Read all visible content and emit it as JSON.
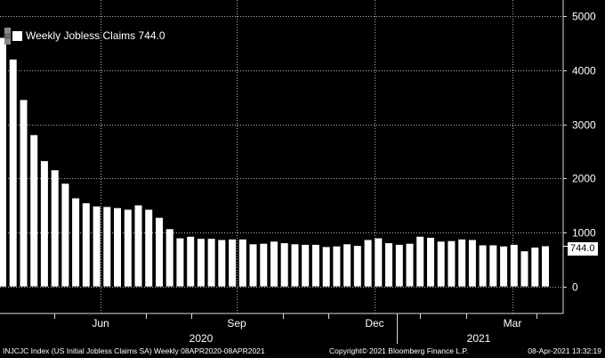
{
  "legend": {
    "grip": "⊡",
    "label": "Weekly Jobless Claims 744.0"
  },
  "last_value_tag": "744.0",
  "footer": {
    "left": "INJCJC Index (US Initial Jobless Claims SA)  Weekly 08APR2020-08APR2021",
    "center": "Copyright© 2021 Bloomberg Finance L.P.",
    "right": "08-Apr-2021 13:32:19"
  },
  "colors": {
    "background": "#000000",
    "bars": "#ffffff",
    "grid": "#b4b4b4",
    "text": "#ffffff"
  },
  "chart_data": {
    "type": "bar",
    "title": "",
    "series": [
      {
        "name": "Weekly Jobless Claims",
        "values": [
          4600,
          4200,
          3450,
          2800,
          2320,
          2150,
          1900,
          1630,
          1540,
          1480,
          1470,
          1450,
          1420,
          1500,
          1420,
          1270,
          1060,
          890,
          920,
          880,
          880,
          860,
          870,
          870,
          780,
          790,
          830,
          800,
          780,
          770,
          770,
          730,
          740,
          780,
          750,
          860,
          890,
          800,
          770,
          790,
          920,
          900,
          830,
          840,
          870,
          860,
          760,
          760,
          740,
          770,
          650,
          720,
          744
        ]
      }
    ],
    "x_tick_labels": [
      "Jun",
      "Sep",
      "Dec",
      "Mar"
    ],
    "year_labels": [
      "2020",
      "2021"
    ],
    "y_ticks": [
      0,
      1000,
      2000,
      3000,
      4000,
      5000
    ],
    "ylim": [
      -500,
      5300
    ],
    "y_axis_position": "right",
    "grid": true,
    "legend_position": "top-left",
    "last_value": 744.0
  }
}
